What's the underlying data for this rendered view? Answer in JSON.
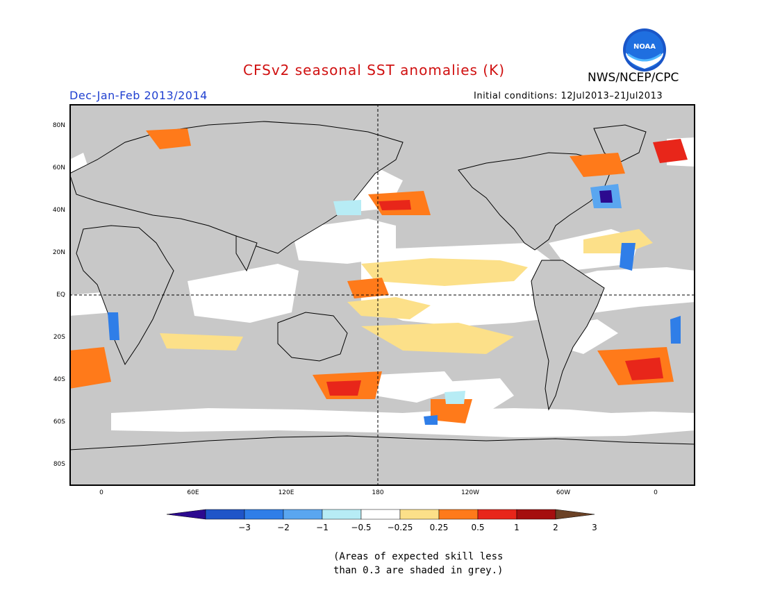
{
  "title": "CFSv2 seasonal SST anomalies (K)",
  "season": "Dec-Jan-Feb 2013/2014",
  "organization": "NWS/NCEP/CPC",
  "logo_text": "NOAA",
  "initial_conditions": "Initial conditions: 12Jul2013–21Jul2013",
  "map": {
    "lat_ticks": [
      "80N",
      "60N",
      "40N",
      "20N",
      "EQ",
      "20S",
      "40S",
      "60S",
      "80S"
    ],
    "lon_ticks": [
      "0",
      "60E",
      "120E",
      "180",
      "120W",
      "60W",
      "0"
    ],
    "dashed_reference_lines": [
      "EQ",
      "180"
    ]
  },
  "colorbar": {
    "labels": [
      "−3",
      "−2",
      "−1",
      "−0.5",
      "−0.25",
      "0.25",
      "0.5",
      "1",
      "2",
      "3"
    ],
    "colors": [
      "#2c0a8f",
      "#1f55c8",
      "#2f7ee8",
      "#5aa6f0",
      "#b7ecf5",
      "#ffffff",
      "#fce089",
      "#ff7a1a",
      "#e8261a",
      "#a50f0f",
      "#6b4226"
    ]
  },
  "footnote": {
    "line1": "(Areas of expected skill less",
    "line2": "than 0.3 are shaded in grey.)"
  },
  "colors": {
    "ocean_low_skill": "#c8c8c8",
    "ocean_neutral": "#ffffff",
    "land": "#c8c8c8",
    "title": "#d01010",
    "season": "#2040d0"
  }
}
